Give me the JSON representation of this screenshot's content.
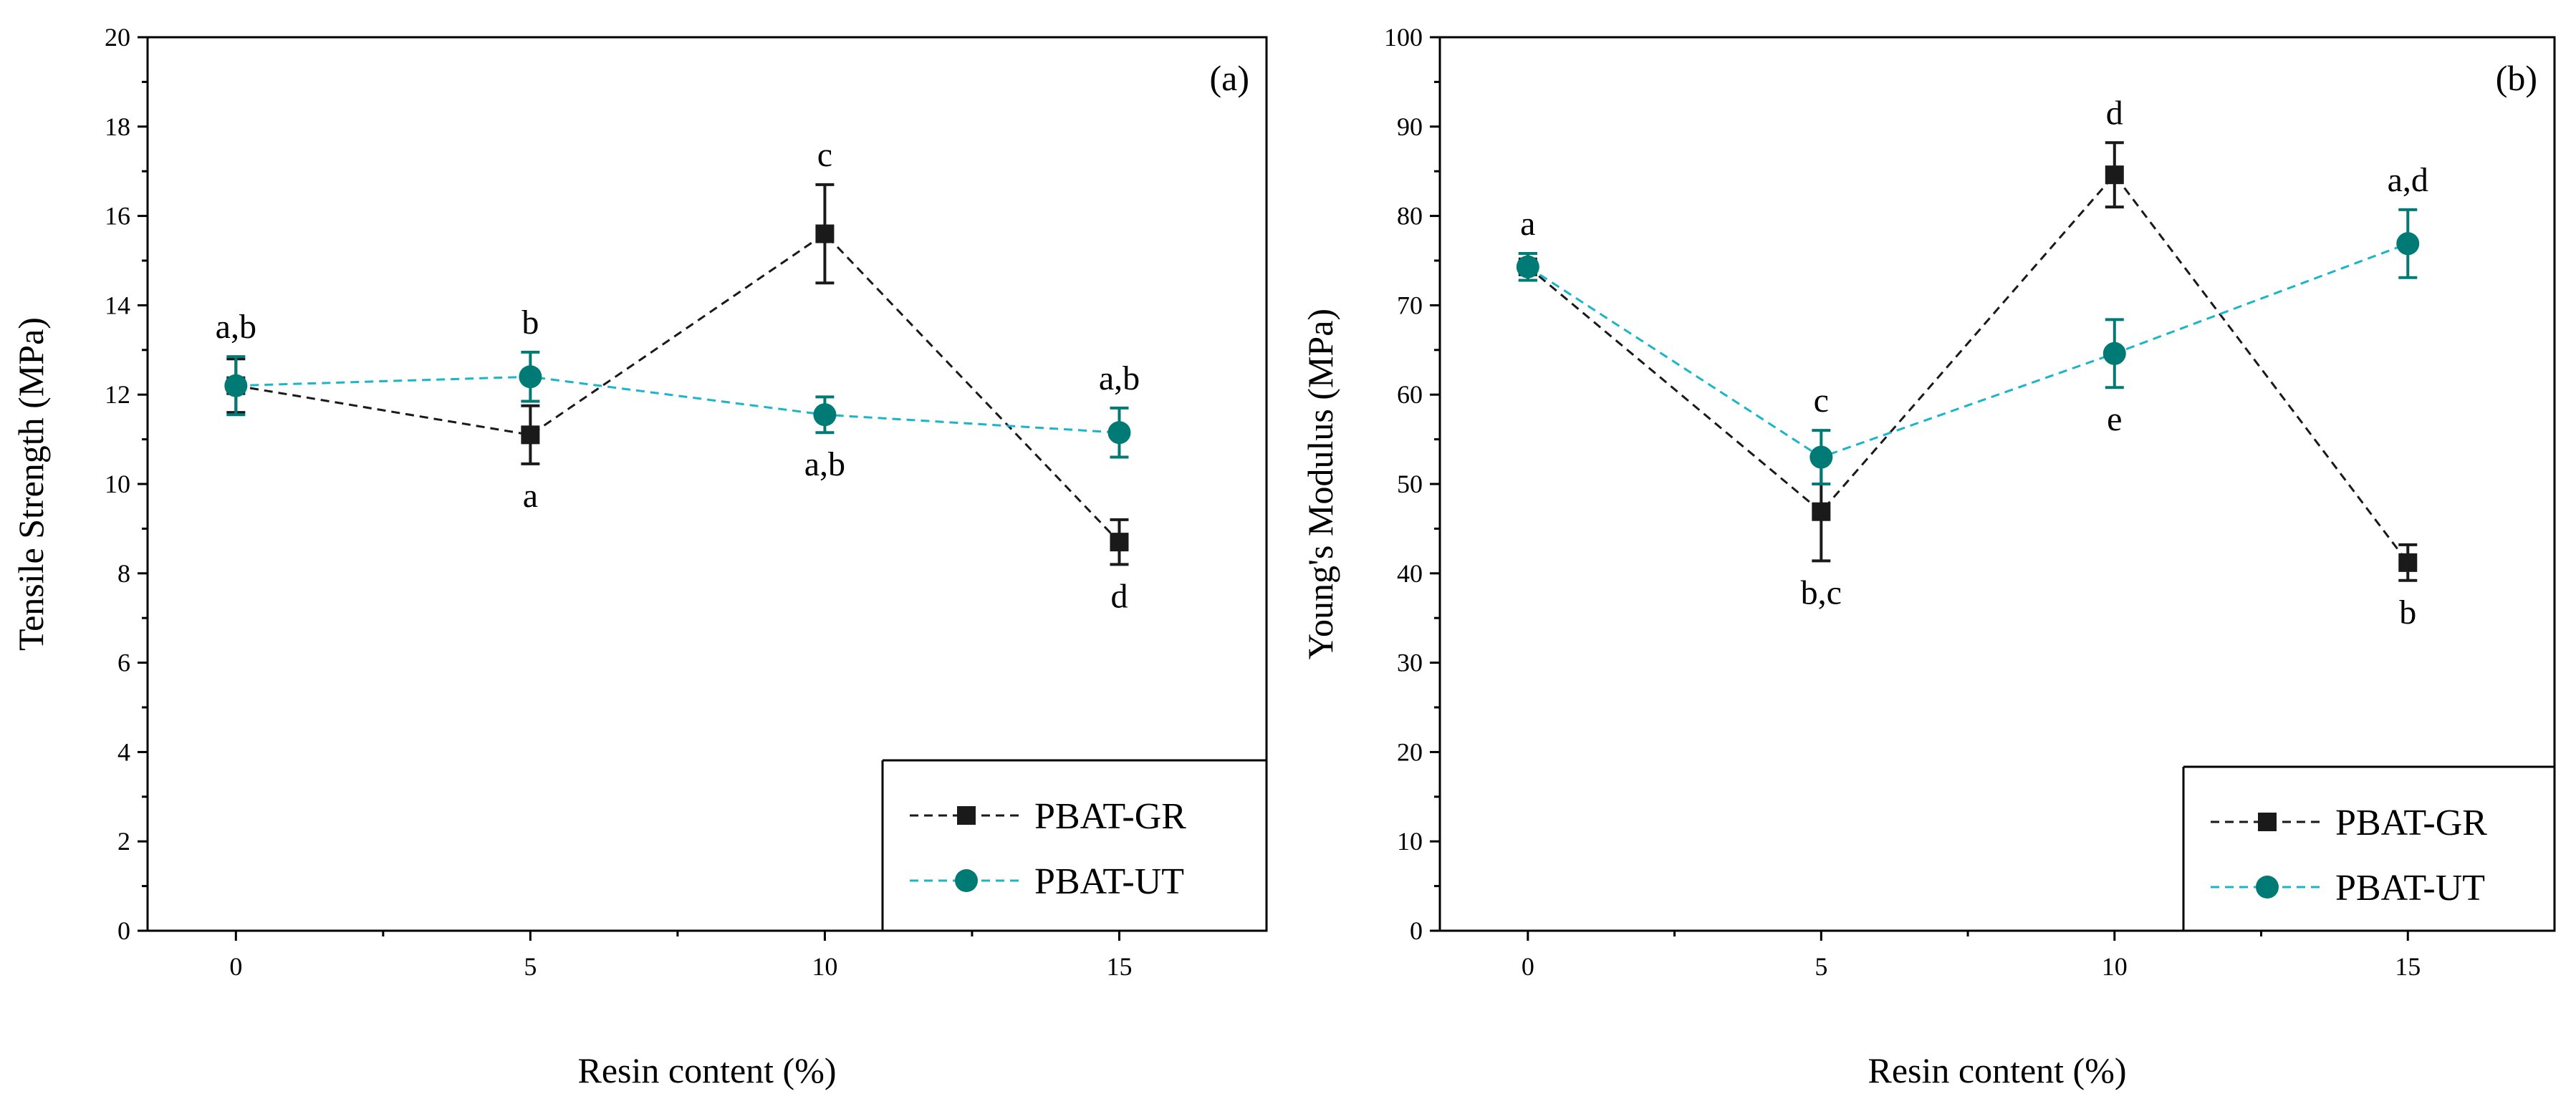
{
  "chart_data": [
    {
      "type": "line",
      "panel_label": "(a)",
      "title": "",
      "xlabel": "Resin content (%)",
      "ylabel": "Tensile Strength (MPa)",
      "xlim": [
        -1.5,
        17.5
      ],
      "ylim": [
        0,
        20
      ],
      "xticks": [
        0,
        5,
        10,
        15
      ],
      "yticks": [
        0,
        2,
        4,
        6,
        8,
        10,
        12,
        14,
        16,
        18,
        20
      ],
      "x": [
        0,
        5,
        10,
        15
      ],
      "legend_position": "bottom-right",
      "series": [
        {
          "name": "PBAT-GR",
          "color": "#1a1a1a",
          "marker": "square",
          "values": [
            12.2,
            11.1,
            15.6,
            8.7
          ],
          "errors": [
            0.6,
            0.65,
            1.1,
            0.5
          ],
          "letters": [
            "",
            "a",
            "c",
            "d"
          ],
          "letter_pos": [
            "",
            "below",
            "above",
            "below"
          ]
        },
        {
          "name": "PBAT-UT",
          "color": "#007a74",
          "line_color": "#1ab5c8",
          "marker": "circle",
          "values": [
            12.2,
            12.4,
            11.55,
            11.15
          ],
          "errors": [
            0.65,
            0.55,
            0.4,
            0.55
          ],
          "letters": [
            "a,b",
            "b",
            "a,b",
            "a,b"
          ],
          "letter_pos": [
            "above",
            "above",
            "below",
            "above"
          ]
        }
      ]
    },
    {
      "type": "line",
      "panel_label": "(b)",
      "title": "",
      "xlabel": "Resin content (%)",
      "ylabel": "Young's Modulus (MPa)",
      "xlim": [
        -1.5,
        17.5
      ],
      "ylim": [
        0,
        100
      ],
      "xticks": [
        0,
        5,
        10,
        15
      ],
      "yticks": [
        0,
        10,
        20,
        30,
        40,
        50,
        60,
        70,
        80,
        90,
        100
      ],
      "x": [
        0,
        5,
        10,
        15
      ],
      "legend_position": "bottom-right",
      "series": [
        {
          "name": "PBAT-GR",
          "color": "#1a1a1a",
          "marker": "square",
          "values": [
            74.3,
            46.9,
            84.6,
            41.2
          ],
          "errors": [
            1.5,
            5.5,
            3.6,
            2.0
          ],
          "letters": [
            "",
            "b,c",
            "d",
            "b"
          ],
          "letter_pos": [
            "",
            "below",
            "above",
            "below"
          ]
        },
        {
          "name": "PBAT-UT",
          "color": "#007a74",
          "line_color": "#1ab5c8",
          "marker": "circle",
          "values": [
            74.3,
            53.0,
            64.6,
            76.9
          ],
          "errors": [
            1.5,
            3.0,
            3.8,
            3.8
          ],
          "letters": [
            "a",
            "c",
            "e",
            "a,d"
          ],
          "letter_pos": [
            "above",
            "above",
            "below",
            "above"
          ]
        }
      ]
    }
  ]
}
